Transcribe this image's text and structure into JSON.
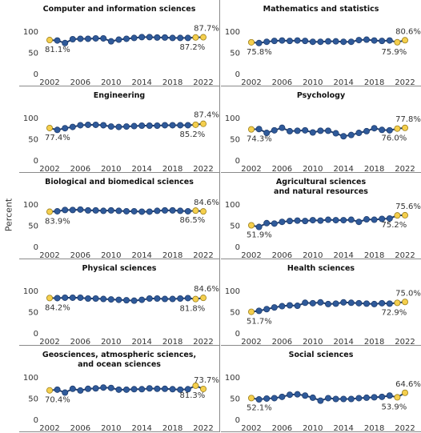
{
  "y_label": "Percent",
  "chart_data": [
    {
      "type": "line",
      "title": "Computer and information sciences",
      "color": "#1f3d6e",
      "marker_color": "#2f5a9a",
      "highlight_color": "#f5cf4d",
      "x": [
        2002,
        2003,
        2004,
        2005,
        2006,
        2007,
        2008,
        2009,
        2010,
        2011,
        2012,
        2013,
        2014,
        2015,
        2016,
        2017,
        2018,
        2019,
        2020,
        2021,
        2022
      ],
      "values": [
        81.1,
        80,
        74,
        83,
        84,
        84,
        85,
        85,
        78,
        82,
        84,
        86,
        88,
        88,
        87,
        87,
        86,
        86,
        86,
        87.2,
        87.7
      ],
      "value_labels": [
        "81.1%",
        null,
        null,
        null,
        null,
        null,
        null,
        null,
        null,
        null,
        null,
        null,
        null,
        null,
        null,
        null,
        null,
        null,
        null,
        "87.2%",
        "87.7%"
      ],
      "xlim": [
        2002,
        2022
      ],
      "xticks": [
        2002,
        2006,
        2010,
        2014,
        2018,
        2022
      ],
      "ylim": [
        0,
        100
      ],
      "yticks": [
        0,
        50,
        100
      ]
    },
    {
      "type": "line",
      "title": "Mathematics and statistics",
      "color": "#1f3d6e",
      "marker_color": "#2f5a9a",
      "highlight_color": "#f5cf4d",
      "x": [
        2002,
        2003,
        2004,
        2005,
        2006,
        2007,
        2008,
        2009,
        2010,
        2011,
        2012,
        2013,
        2014,
        2015,
        2016,
        2017,
        2018,
        2019,
        2020,
        2021,
        2022
      ],
      "values": [
        75.8,
        74,
        77,
        79,
        80,
        79,
        80,
        79,
        77,
        77,
        78,
        78,
        77,
        77,
        81,
        82,
        80,
        79,
        80,
        75.9,
        80.6
      ],
      "value_labels": [
        "75.8%",
        null,
        null,
        null,
        null,
        null,
        null,
        null,
        null,
        null,
        null,
        null,
        null,
        null,
        null,
        null,
        null,
        null,
        null,
        "75.9%",
        "80.6%"
      ],
      "xlim": [
        2002,
        2022
      ],
      "xticks": [
        2002,
        2006,
        2010,
        2014,
        2018,
        2022
      ],
      "ylim": [
        0,
        100
      ],
      "yticks": [
        0,
        50,
        100
      ]
    },
    {
      "type": "line",
      "title": "Engineering",
      "color": "#1f3d6e",
      "marker_color": "#2f5a9a",
      "highlight_color": "#f5cf4d",
      "x": [
        2002,
        2003,
        2004,
        2005,
        2006,
        2007,
        2008,
        2009,
        2010,
        2011,
        2012,
        2013,
        2014,
        2015,
        2016,
        2017,
        2018,
        2019,
        2020,
        2021,
        2022
      ],
      "values": [
        77.4,
        73,
        77,
        80,
        84,
        85,
        85,
        84,
        81,
        80,
        81,
        82,
        83,
        83,
        83,
        84,
        84,
        84,
        84,
        85.2,
        87.4
      ],
      "value_labels": [
        "77.4%",
        null,
        null,
        null,
        null,
        null,
        null,
        null,
        null,
        null,
        null,
        null,
        null,
        null,
        null,
        null,
        null,
        null,
        null,
        "85.2%",
        "87.4%"
      ],
      "xlim": [
        2002,
        2022
      ],
      "xticks": [
        2002,
        2006,
        2010,
        2014,
        2018,
        2022
      ],
      "ylim": [
        0,
        100
      ],
      "yticks": [
        0,
        50,
        100
      ]
    },
    {
      "type": "line",
      "title": "Psychology",
      "color": "#1f3d6e",
      "marker_color": "#2f5a9a",
      "highlight_color": "#f5cf4d",
      "x": [
        2002,
        2003,
        2004,
        2005,
        2006,
        2007,
        2008,
        2009,
        2010,
        2011,
        2012,
        2013,
        2014,
        2015,
        2016,
        2017,
        2018,
        2019,
        2020,
        2021,
        2022
      ],
      "values": [
        74.3,
        75,
        66,
        72,
        78,
        70,
        71,
        72,
        67,
        71,
        71,
        65,
        58,
        61,
        66,
        70,
        77,
        73,
        72,
        76.0,
        77.8
      ],
      "value_labels": [
        "74.3%",
        null,
        null,
        null,
        null,
        null,
        null,
        null,
        null,
        null,
        null,
        null,
        null,
        null,
        null,
        null,
        null,
        null,
        null,
        "76.0%",
        "77.8%"
      ],
      "xlim": [
        2002,
        2022
      ],
      "xticks": [
        2002,
        2006,
        2010,
        2014,
        2018,
        2022
      ],
      "ylim": [
        0,
        100
      ],
      "yticks": [
        0,
        50,
        100
      ]
    },
    {
      "type": "line",
      "title": "Biological and biomedical sciences",
      "color": "#1f3d6e",
      "marker_color": "#2f5a9a",
      "highlight_color": "#f5cf4d",
      "x": [
        2002,
        2003,
        2004,
        2005,
        2006,
        2007,
        2008,
        2009,
        2010,
        2011,
        2012,
        2013,
        2014,
        2015,
        2016,
        2017,
        2018,
        2019,
        2020,
        2021,
        2022
      ],
      "values": [
        83.9,
        85,
        88,
        88,
        89,
        87,
        87,
        86,
        87,
        86,
        85,
        85,
        84,
        84,
        86,
        87,
        87,
        86,
        85,
        86.5,
        84.6
      ],
      "value_labels": [
        "83.9%",
        null,
        null,
        null,
        null,
        null,
        null,
        null,
        null,
        null,
        null,
        null,
        null,
        null,
        null,
        null,
        null,
        null,
        null,
        "86.5%",
        "84.6%"
      ],
      "xlim": [
        2002,
        2022
      ],
      "xticks": [
        2002,
        2006,
        2010,
        2014,
        2018,
        2022
      ],
      "ylim": [
        0,
        100
      ],
      "yticks": [
        0,
        50,
        100
      ]
    },
    {
      "type": "line",
      "title": "Agricultural sciences\nand natural resources",
      "color": "#1f3d6e",
      "marker_color": "#2f5a9a",
      "highlight_color": "#f5cf4d",
      "x": [
        2002,
        2003,
        2004,
        2005,
        2006,
        2007,
        2008,
        2009,
        2010,
        2011,
        2012,
        2013,
        2014,
        2015,
        2016,
        2017,
        2018,
        2019,
        2020,
        2021,
        2022
      ],
      "values": [
        51.9,
        48,
        57,
        56,
        60,
        62,
        63,
        62,
        64,
        63,
        65,
        64,
        64,
        65,
        60,
        66,
        65,
        67,
        68,
        75.2,
        75.6
      ],
      "value_labels": [
        "51.9%",
        null,
        null,
        null,
        null,
        null,
        null,
        null,
        null,
        null,
        null,
        null,
        null,
        null,
        null,
        null,
        null,
        null,
        null,
        "75.2%",
        "75.6%"
      ],
      "xlim": [
        2002,
        2022
      ],
      "xticks": [
        2002,
        2006,
        2010,
        2014,
        2018,
        2022
      ],
      "ylim": [
        0,
        100
      ],
      "yticks": [
        0,
        50,
        100
      ]
    },
    {
      "type": "line",
      "title": "Physical sciences",
      "color": "#1f3d6e",
      "marker_color": "#2f5a9a",
      "highlight_color": "#f5cf4d",
      "x": [
        2002,
        2003,
        2004,
        2005,
        2006,
        2007,
        2008,
        2009,
        2010,
        2011,
        2012,
        2013,
        2014,
        2015,
        2016,
        2017,
        2018,
        2019,
        2020,
        2021,
        2022
      ],
      "values": [
        84.2,
        84,
        85,
        85,
        85,
        83,
        83,
        82,
        81,
        80,
        79,
        78,
        80,
        83,
        83,
        82,
        82,
        83,
        84,
        81.8,
        84.6
      ],
      "value_labels": [
        "84.2%",
        null,
        null,
        null,
        null,
        null,
        null,
        null,
        null,
        null,
        null,
        null,
        null,
        null,
        null,
        null,
        null,
        null,
        null,
        "81.8%",
        "84.6%"
      ],
      "xlim": [
        2002,
        2022
      ],
      "xticks": [
        2002,
        2006,
        2010,
        2014,
        2018,
        2022
      ],
      "ylim": [
        0,
        100
      ],
      "yticks": [
        0,
        50,
        100
      ]
    },
    {
      "type": "line",
      "title": "Health sciences",
      "color": "#1f3d6e",
      "marker_color": "#2f5a9a",
      "highlight_color": "#f5cf4d",
      "x": [
        2002,
        2003,
        2004,
        2005,
        2006,
        2007,
        2008,
        2009,
        2010,
        2011,
        2012,
        2013,
        2014,
        2015,
        2016,
        2017,
        2018,
        2019,
        2020,
        2021,
        2022
      ],
      "values": [
        51.7,
        54,
        58,
        62,
        65,
        67,
        66,
        73,
        72,
        74,
        70,
        71,
        74,
        73,
        72,
        71,
        70,
        72,
        71,
        72.9,
        75.0
      ],
      "value_labels": [
        "51.7%",
        null,
        null,
        null,
        null,
        null,
        null,
        null,
        null,
        null,
        null,
        null,
        null,
        null,
        null,
        null,
        null,
        null,
        null,
        "72.9%",
        "75.0%"
      ],
      "xlim": [
        2002,
        2022
      ],
      "xticks": [
        2002,
        2006,
        2010,
        2014,
        2018,
        2022
      ],
      "ylim": [
        0,
        100
      ],
      "yticks": [
        0,
        50,
        100
      ]
    },
    {
      "type": "line",
      "title": "Geosciences, atmospheric sciences,\nand ocean sciences",
      "color": "#1f3d6e",
      "marker_color": "#2f5a9a",
      "highlight_color": "#f5cf4d",
      "x": [
        2002,
        2003,
        2004,
        2005,
        2006,
        2007,
        2008,
        2009,
        2010,
        2011,
        2012,
        2013,
        2014,
        2015,
        2016,
        2017,
        2018,
        2019,
        2020,
        2021,
        2022
      ],
      "values": [
        70.4,
        72,
        65,
        74,
        70,
        74,
        75,
        77,
        76,
        72,
        72,
        73,
        73,
        75,
        74,
        74,
        73,
        72,
        73,
        81.3,
        73.7
      ],
      "value_labels": [
        "70.4%",
        null,
        null,
        null,
        null,
        null,
        null,
        null,
        null,
        null,
        null,
        null,
        null,
        null,
        null,
        null,
        null,
        null,
        null,
        "81.3%",
        "73.7%"
      ],
      "xlim": [
        2002,
        2022
      ],
      "xticks": [
        2002,
        2006,
        2010,
        2014,
        2018,
        2022
      ],
      "ylim": [
        0,
        100
      ],
      "yticks": [
        0,
        50,
        100
      ]
    },
    {
      "type": "line",
      "title": "Social sciences",
      "color": "#1f3d6e",
      "marker_color": "#2f5a9a",
      "highlight_color": "#f5cf4d",
      "x": [
        2002,
        2003,
        2004,
        2005,
        2006,
        2007,
        2008,
        2009,
        2010,
        2011,
        2012,
        2013,
        2014,
        2015,
        2016,
        2017,
        2018,
        2019,
        2020,
        2021,
        2022
      ],
      "values": [
        52.1,
        49,
        51,
        52,
        55,
        60,
        61,
        58,
        53,
        46,
        52,
        50,
        50,
        50,
        52,
        53,
        54,
        55,
        58,
        53.9,
        64.6
      ],
      "value_labels": [
        "52.1%",
        null,
        null,
        null,
        null,
        null,
        null,
        null,
        null,
        null,
        null,
        null,
        null,
        null,
        null,
        null,
        null,
        null,
        null,
        "53.9%",
        "64.6%"
      ],
      "xlim": [
        2002,
        2022
      ],
      "xticks": [
        2002,
        2006,
        2010,
        2014,
        2018,
        2022
      ],
      "ylim": [
        0,
        100
      ],
      "yticks": [
        0,
        50,
        100
      ]
    }
  ]
}
